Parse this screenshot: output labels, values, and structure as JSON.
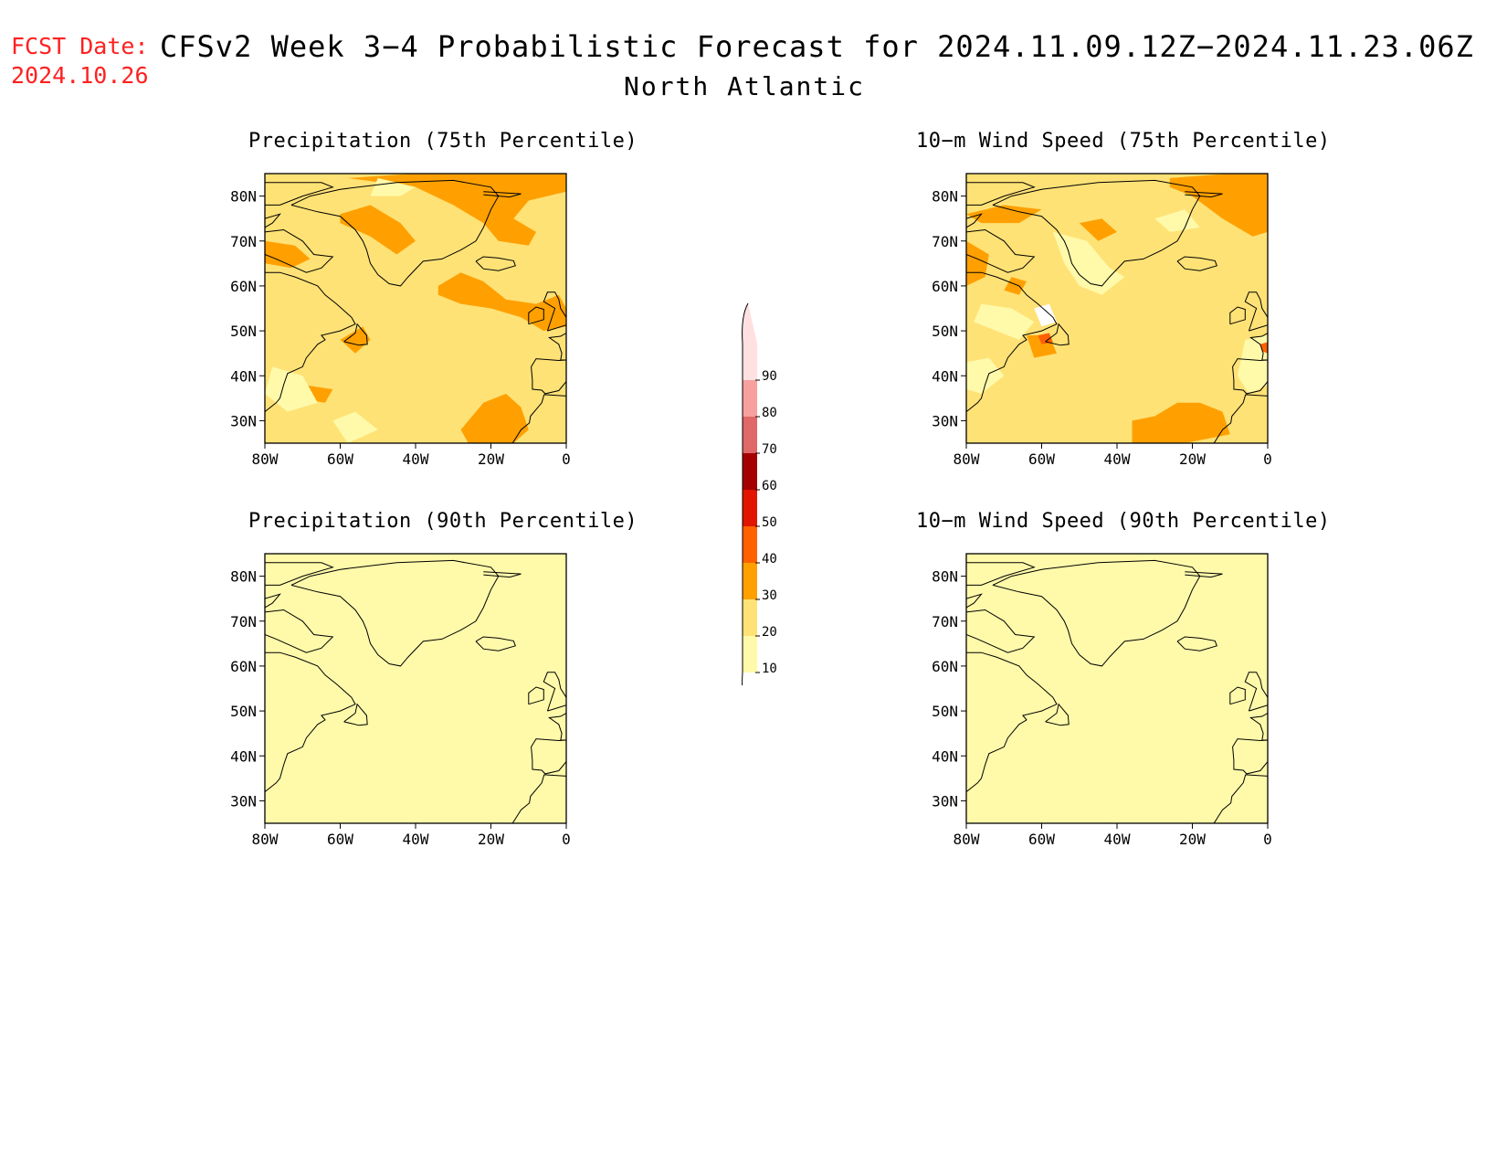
{
  "header": {
    "fcst_label": "FCST Date:",
    "fcst_date": "2024.10.26",
    "title": "CFSv2 Week 3−4 Probabilistic Forecast for 2024.11.09.12Z−2024.11.23.06Z",
    "region": "North Atlantic"
  },
  "panels": [
    {
      "title": "Precipitation (75th Percentile)",
      "base_category": 20,
      "orange_level": "high"
    },
    {
      "title": "10−m Wind Speed (75th Percentile)",
      "base_category": 20,
      "orange_level": "high"
    },
    {
      "title": "Precipitation (90th Percentile)",
      "base_category": 10,
      "orange_level": "none"
    },
    {
      "title": "10−m Wind Speed (90th Percentile)",
      "base_category": 10,
      "orange_level": "none"
    }
  ],
  "axes": {
    "lat_labels": [
      "80N",
      "70N",
      "60N",
      "50N",
      "40N",
      "30N"
    ],
    "lon_labels": [
      "80W",
      "60W",
      "40W",
      "20W",
      "0"
    ]
  },
  "colorbar": {
    "levels": [
      "10",
      "20",
      "30",
      "40",
      "50",
      "60",
      "70",
      "80",
      "90"
    ],
    "colors": [
      "#fffaaa",
      "#ffe276",
      "#ffa000",
      "#ff6000",
      "#e11400",
      "#a50000",
      "#e06868",
      "#f7a0a0",
      "#ffe0e0"
    ]
  },
  "colors": {
    "white_below": "#ffffff",
    "coast": "#000000"
  }
}
